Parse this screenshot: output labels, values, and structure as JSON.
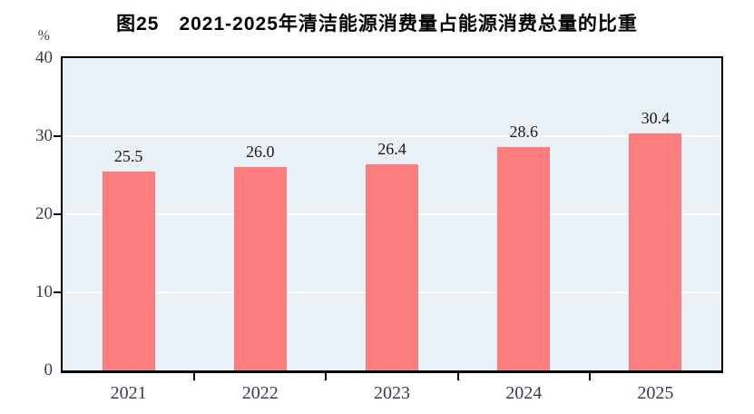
{
  "chart_data": {
    "type": "bar",
    "title": "图25　2021-2025年清洁能源消费量占能源消费总量的比重",
    "unit": "%",
    "categories": [
      "2021",
      "2022",
      "2023",
      "2024",
      "2025"
    ],
    "values": [
      25.5,
      26.0,
      26.4,
      28.6,
      30.4
    ],
    "value_labels": [
      "25.5",
      "26.0",
      "26.4",
      "28.6",
      "30.4"
    ],
    "xlabel": "",
    "ylabel": "%",
    "ylim": [
      0,
      40
    ],
    "yticks": [
      0,
      10,
      20,
      30,
      40
    ],
    "gridline_values": [
      10,
      20,
      30
    ],
    "legend_position": "none",
    "grid": "horizontal-white",
    "colors": {
      "bar": "#FC7D7D",
      "plot_background": "#EAF1F6",
      "gridline": "#FFFFFF",
      "axis_border": "#000000",
      "axis_label": "#333F52",
      "value_label": "#1A1A1A",
      "title": "#000000",
      "page_background": "#FFFFFF"
    }
  }
}
